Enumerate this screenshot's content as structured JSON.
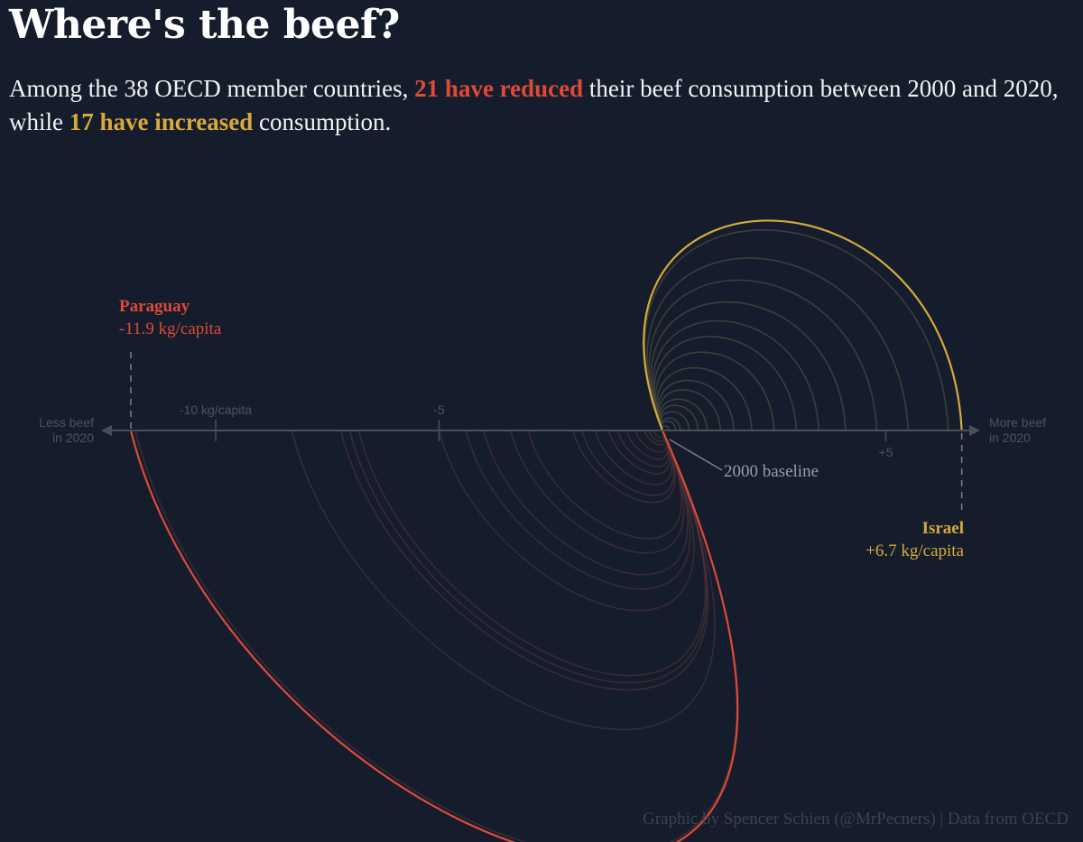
{
  "header": {
    "title": "Where's the beef?",
    "subtitle_part1": "Among the 38 OECD member countries, ",
    "subtitle_reduced": "21 have reduced",
    "subtitle_part2": " their beef consumption between 2000 and 2020, while ",
    "subtitle_increased": "17 have increased",
    "subtitle_part3": " consumption."
  },
  "credit": "Graphic by Spencer Schien (@MrPecners) | Data from OECD",
  "colors": {
    "background": "#151d2c",
    "reduced": "#dd4a36",
    "increased": "#d6a93a",
    "axis": "#4a4f57",
    "muted": "#5f6570"
  },
  "chart_data": {
    "type": "arc",
    "title": "Where's the beef?",
    "xlabel": "",
    "ylabel": "",
    "xlim": [
      -12.2,
      7.5
    ],
    "axis": {
      "left_label_line1": "Less beef",
      "left_label_line2": "in 2020",
      "right_label_line1": "More beef",
      "right_label_line2": "in 2020",
      "ticks": [
        {
          "value": -10,
          "label": "-10 kg/capita"
        },
        {
          "value": -5,
          "label": "-5"
        },
        {
          "value": 5,
          "label": "+5"
        }
      ],
      "baseline_label": "2000 baseline"
    },
    "reduced": {
      "count": 21,
      "values": [
        -11.9,
        -11.8,
        -8.3,
        -7.2,
        -7.0,
        -6.8,
        -5.0,
        -4.4,
        -4.0,
        -3.4,
        -3.0,
        -2.0,
        -1.8,
        -1.5,
        -1.2,
        -1.0,
        -0.8,
        -0.6,
        -0.4,
        -0.3,
        -0.2
      ]
    },
    "increased": {
      "count": 17,
      "values": [
        6.7,
        6.4,
        5.5,
        4.8,
        4.1,
        3.5,
        3.0,
        2.5,
        2.0,
        1.6,
        1.3,
        1.0,
        0.8,
        0.6,
        0.4,
        0.3,
        0.15
      ]
    },
    "annotations": [
      {
        "country": "Paraguay",
        "value": -11.9,
        "label": "-11.9 kg/capita"
      },
      {
        "country": "Israel",
        "value": 6.7,
        "label": "+6.7 kg/capita"
      }
    ]
  }
}
